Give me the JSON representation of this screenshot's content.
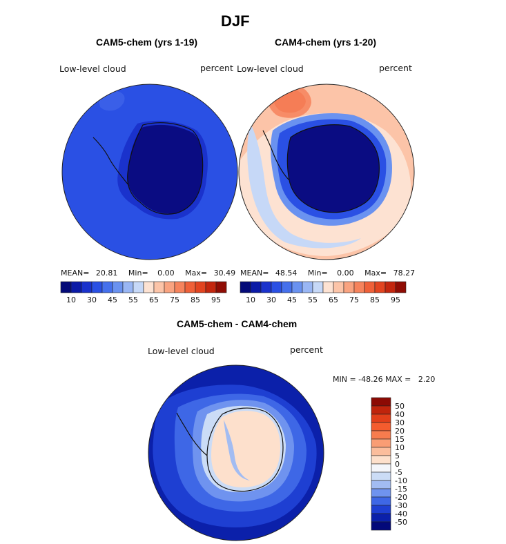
{
  "figure": {
    "title": "DJF",
    "panel_left": {
      "title": "CAM5-chem (yrs 1-19)",
      "label": "Low-level cloud",
      "units": "percent",
      "mean_label": "MEAN=",
      "mean_value": "20.81",
      "min_label": "Min=",
      "min_value": "0.00",
      "max_label": "Max=",
      "max_value": "30.49"
    },
    "panel_right": {
      "title": "CAM4-chem (yrs 1-20)",
      "label": "Low-level cloud",
      "units": "percent",
      "mean_label": "MEAN=",
      "mean_value": "48.54",
      "min_label": "Min=",
      "min_value": "0.00",
      "max_label": "Max=",
      "max_value": "78.27"
    },
    "panel_diff": {
      "title": "CAM5-chem - CAM4-chem",
      "label": "Low-level cloud",
      "units": "percent",
      "minmax_text": "MIN = -48.26 MAX =   2.20"
    },
    "colors": {
      "ocean_left": "#2a50e4",
      "ice_left": "#0a0c82",
      "coast": "#111111"
    }
  },
  "chart_data": {
    "type": "heatmap",
    "title": "DJF",
    "projection": "south polar stereographic",
    "abs_colorbar": {
      "tick_labels": [
        "10",
        "30",
        "45",
        "55",
        "65",
        "75",
        "85",
        "95"
      ],
      "colors": [
        "#040a78",
        "#0b1aa6",
        "#1a32cc",
        "#2a50e4",
        "#4570ec",
        "#6a92f0",
        "#99b6f4",
        "#c6d8f7",
        "#fde2d2",
        "#fcc4a8",
        "#f9a380",
        "#f6835c",
        "#ef6038",
        "#e24420",
        "#c3260e",
        "#8f0c04"
      ]
    },
    "diff_colorbar": {
      "tick_labels": [
        "50",
        "40",
        "30",
        "20",
        "15",
        "10",
        "5",
        "0",
        "-5",
        "-10",
        "-15",
        "-20",
        "-30",
        "-40",
        "-50"
      ],
      "colors": [
        "#8c0a04",
        "#c0240c",
        "#e23f1a",
        "#f45c2e",
        "#f77c4e",
        "#f99d74",
        "#fbbd9c",
        "#fde0cc",
        "#f4f6fb",
        "#cbdcf6",
        "#a2bcf2",
        "#6f93ef",
        "#3e67e6",
        "#1e3fd2",
        "#0b20aa",
        "#03097a"
      ]
    },
    "panels": [
      {
        "name": "CAM5-chem (yrs 1-19)",
        "mean": 20.81,
        "min": 0.0,
        "max": 30.49
      },
      {
        "name": "CAM4-chem (yrs 1-20)",
        "mean": 48.54,
        "min": 0.0,
        "max": 78.27
      },
      {
        "name": "CAM5-chem - CAM4-chem",
        "min": -48.26,
        "max": 2.2
      }
    ]
  }
}
